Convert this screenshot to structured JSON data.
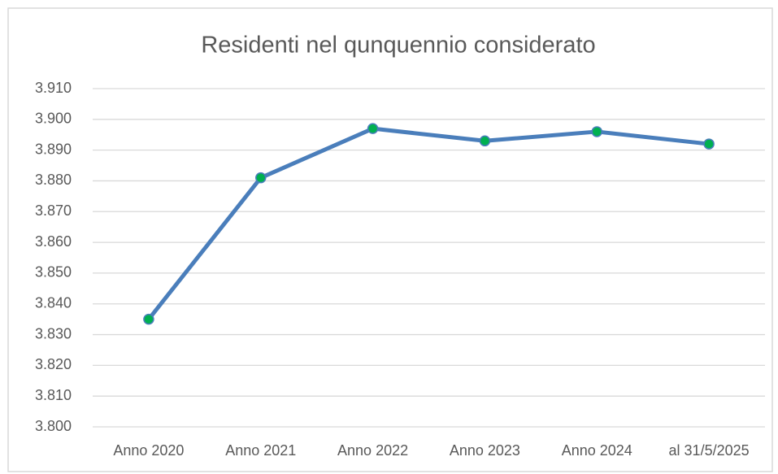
{
  "chart_data": {
    "type": "line",
    "title": "Residenti nel qunquennio considerato",
    "categories": [
      "Anno 2020",
      "Anno 2021",
      "Anno 2022",
      "Anno 2023",
      "Anno 2024",
      "al 31/5/2025"
    ],
    "series": [
      {
        "color": "#4a7ebb",
        "marker_color": "#00b050",
        "values": [
          3835,
          3881,
          3897,
          3893,
          3896,
          3892
        ]
      }
    ],
    "ylim": [
      3800,
      3910
    ],
    "yticks": [
      {
        "value": 3800,
        "label": "3.800"
      },
      {
        "value": 3810,
        "label": "3.810"
      },
      {
        "value": 3820,
        "label": "3.820"
      },
      {
        "value": 3830,
        "label": "3.830"
      },
      {
        "value": 3840,
        "label": "3.840"
      },
      {
        "value": 3850,
        "label": "3.850"
      },
      {
        "value": 3860,
        "label": "3.860"
      },
      {
        "value": 3870,
        "label": "3.870"
      },
      {
        "value": 3880,
        "label": "3.880"
      },
      {
        "value": 3890,
        "label": "3.890"
      },
      {
        "value": 3900,
        "label": "3.900"
      },
      {
        "value": 3910,
        "label": "3.910"
      }
    ],
    "grid": true
  }
}
